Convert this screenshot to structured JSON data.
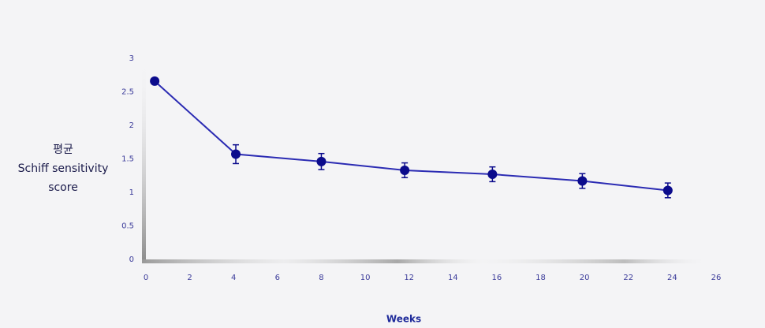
{
  "chart_data": {
    "type": "line",
    "x": [
      0.4,
      4.1,
      8,
      11.8,
      15.8,
      19.9,
      23.8
    ],
    "values": [
      2.66,
      1.57,
      1.46,
      1.33,
      1.27,
      1.17,
      1.03
    ],
    "errors": [
      0,
      0.14,
      0.12,
      0.11,
      0.11,
      0.11,
      0.11
    ],
    "color": "#2b2bb3",
    "marker_color": "#0b0b8c",
    "xlim": [
      0,
      26
    ],
    "xticks": [
      0,
      2,
      4,
      6,
      8,
      10,
      12,
      14,
      16,
      18,
      20,
      22,
      24,
      26
    ],
    "ylim": [
      0,
      3
    ],
    "yticks": [
      0,
      0.5,
      1,
      1.5,
      2,
      2.5,
      3
    ],
    "xlabel": "Weeks",
    "ylabel": [
      "평균",
      "Schiff sensitivity",
      "score"
    ]
  }
}
